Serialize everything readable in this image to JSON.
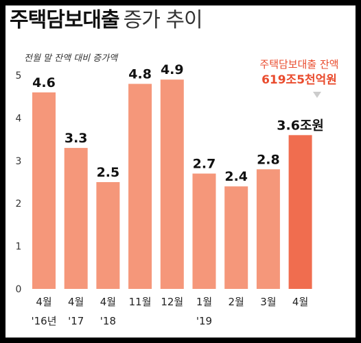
{
  "header": {
    "title_main": "주택담보대출",
    "title_sub": "증가 추이"
  },
  "chart_data": {
    "type": "bar",
    "title": "주택담보대출 증가 추이",
    "ylabel": "전월 말 잔액 대비 증가액",
    "ylim": [
      0,
      5
    ],
    "yticks": [
      "0",
      "1",
      "2",
      "3",
      "4",
      "5"
    ],
    "categories": [
      "4월",
      "4월",
      "4월",
      "11월",
      "12월",
      "1월",
      "2월",
      "3월",
      "4월"
    ],
    "year_labels": [
      "'16년",
      "'17",
      "'18",
      "",
      "",
      "'19",
      "",
      "",
      ""
    ],
    "values": [
      4.6,
      3.3,
      2.5,
      4.8,
      4.9,
      2.7,
      2.4,
      2.8,
      3.6
    ],
    "data_labels": [
      "4.6",
      "3.3",
      "2.5",
      "4.8",
      "4.9",
      "2.7",
      "2.4",
      "2.8",
      "3.6조원"
    ],
    "bar_color": "#f5977a",
    "highlight_color": "#f06d4f",
    "highlight_index": 8,
    "grid": false
  },
  "callout": {
    "label": "주택담보대출 잔액",
    "value": "619조5천억원"
  }
}
